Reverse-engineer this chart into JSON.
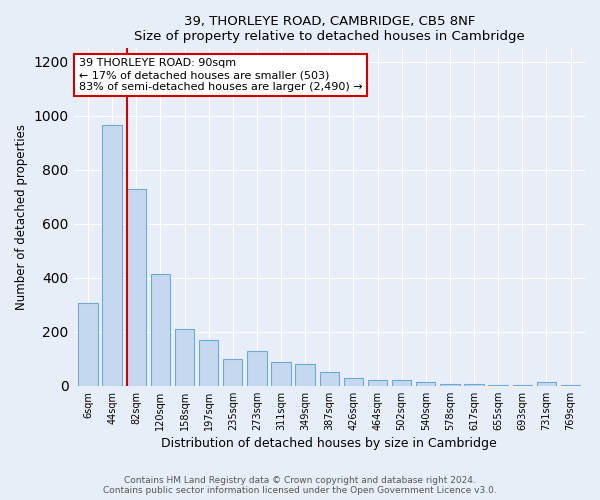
{
  "title1": "39, THORLEYE ROAD, CAMBRIDGE, CB5 8NF",
  "title2": "Size of property relative to detached houses in Cambridge",
  "xlabel": "Distribution of detached houses by size in Cambridge",
  "ylabel": "Number of detached properties",
  "categories": [
    "6sqm",
    "44sqm",
    "82sqm",
    "120sqm",
    "158sqm",
    "197sqm",
    "235sqm",
    "273sqm",
    "311sqm",
    "349sqm",
    "387sqm",
    "426sqm",
    "464sqm",
    "502sqm",
    "540sqm",
    "578sqm",
    "617sqm",
    "655sqm",
    "693sqm",
    "731sqm",
    "769sqm"
  ],
  "values": [
    305,
    965,
    730,
    415,
    210,
    170,
    100,
    130,
    90,
    80,
    50,
    30,
    20,
    20,
    15,
    5,
    5,
    3,
    3,
    15,
    3
  ],
  "bar_color": "#c5d8f0",
  "bar_edge_color": "#6aaad4",
  "vline_color": "#cc0000",
  "annotation_text": "39 THORLEYE ROAD: 90sqm\n← 17% of detached houses are smaller (503)\n83% of semi-detached houses are larger (2,490) →",
  "annotation_box_color": "#ffffff",
  "annotation_box_edge_color": "#cc0000",
  "ylim": [
    0,
    1250
  ],
  "yticks": [
    0,
    200,
    400,
    600,
    800,
    1000,
    1200
  ],
  "footer1": "Contains HM Land Registry data © Crown copyright and database right 2024.",
  "footer2": "Contains public sector information licensed under the Open Government Licence v3.0.",
  "bg_color": "#e8eef8",
  "plot_bg_color": "#e8eef8"
}
